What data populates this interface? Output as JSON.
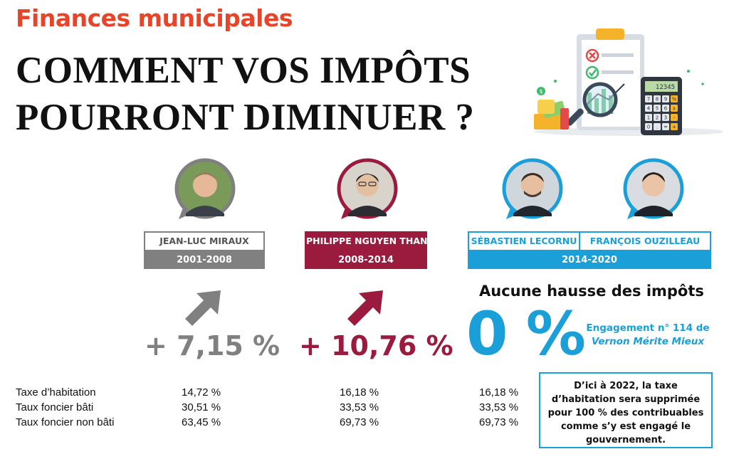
{
  "header": {
    "kicker": "Finances municipales",
    "title_line1": "COMMENT VOS IMPÔTS",
    "title_line2": "POURRONT DIMINUER ?"
  },
  "illustration": {
    "calculator_display": "12345",
    "calculator_keys": [
      "7",
      "8",
      "9",
      "%",
      "4",
      "5",
      "6",
      "x",
      "1",
      "2",
      "3",
      "-",
      "0",
      ".",
      "=",
      "+"
    ]
  },
  "colors": {
    "kicker": "#e8442a",
    "miraux": "#808080",
    "nguyen": "#9b1b3f",
    "lecornu": "#1a9fd8"
  },
  "mandates": [
    {
      "name": "JEAN-LUC MIRAUX",
      "period": "2001-2008",
      "change": "+ 7,15 %"
    },
    {
      "name": "PHILIPPE NGUYEN THANH",
      "period": "2008-2014",
      "change": "+ 10,76 %"
    },
    {
      "names": [
        "SÉBASTIEN LECORNU",
        "FRANÇOIS OUZILLEAU"
      ],
      "period": "2014-2020"
    }
  ],
  "current": {
    "headline": "Aucune hausse des impôts",
    "value": "0 %",
    "engagement_line1": "Engagement n° 114 de",
    "engagement_line2": "Vernon Mérite Mieux"
  },
  "rates": [
    {
      "label": "Taxe d’habitation",
      "values": [
        "14,72 %",
        "16,18 %",
        "16,18 %"
      ]
    },
    {
      "label": "Taux foncier bâti",
      "values": [
        "30,51 %",
        "33,53 %",
        "33,53 %"
      ]
    },
    {
      "label": "Taux foncier non bâti",
      "values": [
        "63,45 %",
        "69,73 %",
        "69,73 %"
      ]
    }
  ],
  "note": "D’ici à 2022, la taxe d’habitation sera supprimée pour 100 % des contribuables comme s’y est engagé le gouvernement."
}
